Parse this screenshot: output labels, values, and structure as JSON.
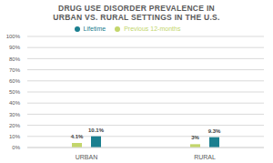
{
  "chart_data": {
    "type": "bar",
    "title": "DRUG USE DISORDER PREVALENCE IN URBAN VS. RURAL SETTINGS IN THE U.S.",
    "categories": [
      "URBAN",
      "RURAL"
    ],
    "series": [
      {
        "name": "Previous 12-months",
        "color": "#c3d66b",
        "values": [
          4.1,
          3
        ],
        "value_labels": [
          "4.1%",
          "3%"
        ]
      },
      {
        "name": "Lifetime",
        "color": "#1b7f8f",
        "values": [
          10.1,
          9.3
        ],
        "value_labels": [
          "10.1%",
          "9.3%"
        ]
      }
    ],
    "ylim": [
      0,
      100
    ],
    "yticks": [
      {
        "value": 0,
        "label": "0%"
      },
      {
        "value": 10,
        "label": "10%"
      },
      {
        "value": 20,
        "label": "20%"
      },
      {
        "value": 30,
        "label": "30%"
      },
      {
        "value": 40,
        "label": "40%"
      },
      {
        "value": 50,
        "label": "50%"
      },
      {
        "value": 60,
        "label": "60%"
      },
      {
        "value": 70,
        "label": "70%"
      },
      {
        "value": 80,
        "label": "80%"
      },
      {
        "value": 90,
        "label": "90%"
      },
      {
        "value": 100,
        "label": "100%"
      }
    ],
    "grid": true,
    "legend": "top",
    "data_labels": true
  }
}
